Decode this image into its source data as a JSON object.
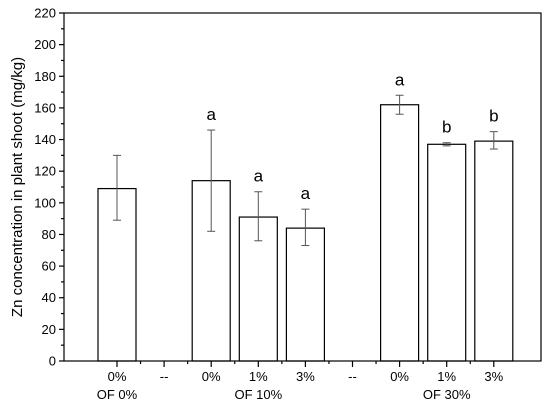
{
  "chart_data": {
    "type": "bar",
    "ylabel": "Zn concentration in plant shoot (mg/kg)",
    "ylim": [
      0,
      220
    ],
    "yticks": [
      0,
      20,
      40,
      60,
      80,
      100,
      120,
      140,
      160,
      180,
      200,
      220
    ],
    "grid": false,
    "slots": [
      "0%",
      "--",
      "0%",
      "1%",
      "3%",
      "--",
      "0%",
      "1%",
      "3%"
    ],
    "bars": [
      {
        "category": "0%",
        "group": "OF 0%",
        "slot": 0,
        "value": 109,
        "err_low": 89,
        "err_high": 130,
        "letter": ""
      },
      {
        "category": "0%",
        "group": "OF 10%",
        "slot": 2,
        "value": 114,
        "err_low": 82,
        "err_high": 146,
        "letter": "a"
      },
      {
        "category": "1%",
        "group": "OF 10%",
        "slot": 3,
        "value": 91,
        "err_low": 76,
        "err_high": 107,
        "letter": "a"
      },
      {
        "category": "3%",
        "group": "OF 10%",
        "slot": 4,
        "value": 84,
        "err_low": 73,
        "err_high": 96,
        "letter": "a"
      },
      {
        "category": "0%",
        "group": "OF 30%",
        "slot": 6,
        "value": 162,
        "err_low": 156,
        "err_high": 168,
        "letter": "a"
      },
      {
        "category": "1%",
        "group": "OF 30%",
        "slot": 7,
        "value": 137,
        "err_low": 136,
        "err_high": 138,
        "letter": "b"
      },
      {
        "category": "3%",
        "group": "OF 30%",
        "slot": 8,
        "value": 139,
        "err_low": 134,
        "err_high": 145,
        "letter": "b"
      }
    ],
    "groups": [
      {
        "label": "OF 0%",
        "slots": [
          0
        ]
      },
      {
        "label": "OF 10%",
        "slots": [
          2,
          3,
          4
        ]
      },
      {
        "label": "OF 30%",
        "slots": [
          6,
          7,
          8
        ]
      }
    ]
  }
}
